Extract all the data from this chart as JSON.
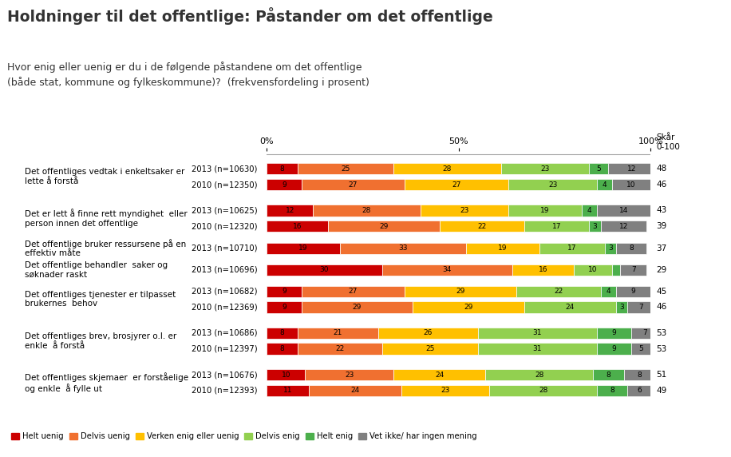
{
  "title": "Holdninger til det offentlige: Påstander om det offentlige",
  "subtitle": "Hvor enig eller uenig er du i de følgende påstandene om det offentlige\n(både stat, kommune og fylkeskommune)?  (frekvensfordeling i prosent)",
  "score_label": "Skår\n0-100",
  "categories": [
    [
      "Det offentliges vedtak i enkeltsaker er\nlette å forstå",
      "2013 (n=10630)",
      "2010 (n=12350)"
    ],
    [
      "Det er lett å finne rett myndighet  eller\nperson innen det offentlige",
      "2013 (n=10625)",
      "2010 (n=12320)"
    ],
    [
      "Det offentlige bruker ressursene på en\neffektiv måte",
      "2013 (n=10710)",
      null
    ],
    [
      "Det offentlige behandler  saker og\nsøknader raskt",
      "2013 (n=10696)",
      null
    ],
    [
      "Det offentliges tjenester er tilpasset\nbrukernes  behov",
      "2013 (n=10682)",
      "2010 (n=12369)"
    ],
    [
      "Det offentliges brev, brosjyrer o.l. er\nenkle  å forstå",
      "2013 (n=10686)",
      "2010 (n=12397)"
    ],
    [
      "Det offentliges skjemaer  er forståelige\nog enkle  å fylle ut",
      "2013 (n=10676)",
      "2010 (n=12393)"
    ]
  ],
  "data": [
    {
      "label": "2013 (n=10630)",
      "values": [
        8,
        25,
        28,
        23,
        5,
        12
      ],
      "score": 48
    },
    {
      "label": "2010 (n=12350)",
      "values": [
        9,
        27,
        27,
        23,
        4,
        10
      ],
      "score": 46
    },
    {
      "label": "2013 (n=10625)",
      "values": [
        12,
        28,
        23,
        19,
        4,
        14
      ],
      "score": 43
    },
    {
      "label": "2010 (n=12320)",
      "values": [
        16,
        29,
        22,
        17,
        3,
        12
      ],
      "score": 39
    },
    {
      "label": "2013 (n=10710)",
      "values": [
        19,
        33,
        19,
        17,
        3,
        8
      ],
      "score": 37
    },
    {
      "label": "2013 (n=10696)",
      "values": [
        30,
        34,
        16,
        10,
        2,
        7
      ],
      "score": 29
    },
    {
      "label": "2013 (n=10682)",
      "values": [
        9,
        27,
        29,
        22,
        4,
        9
      ],
      "score": 45
    },
    {
      "label": "2010 (n=12369)",
      "values": [
        9,
        29,
        29,
        24,
        3,
        7
      ],
      "score": 46
    },
    {
      "label": "2013 (n=10686)",
      "values": [
        8,
        21,
        26,
        31,
        9,
        7
      ],
      "score": 53
    },
    {
      "label": "2010 (n=12397)",
      "values": [
        8,
        22,
        25,
        31,
        9,
        5
      ],
      "score": 53
    },
    {
      "label": "2013 (n=10676)",
      "values": [
        10,
        23,
        24,
        28,
        8,
        8
      ],
      "score": 51
    },
    {
      "label": "2010 (n=12393)",
      "values": [
        11,
        24,
        23,
        28,
        8,
        6
      ],
      "score": 49
    }
  ],
  "bar_colors": [
    "#cc0000",
    "#f07030",
    "#ffc000",
    "#92d050",
    "#4caf4c",
    "#808080"
  ],
  "legend_labels": [
    "Helt uenig",
    "Delvis uenig",
    "Verken enig eller uenig",
    "Delvis enig",
    "Helt enig",
    "Vet ikke/ har ingen mening"
  ],
  "groups": [
    {
      "rows": [
        0,
        1
      ],
      "label_idx": 0
    },
    {
      "rows": [
        2,
        3
      ],
      "label_idx": 1
    },
    {
      "rows": [
        4
      ],
      "label_idx": 2
    },
    {
      "rows": [
        5
      ],
      "label_idx": 3
    },
    {
      "rows": [
        6,
        7
      ],
      "label_idx": 4
    },
    {
      "rows": [
        8,
        9
      ],
      "label_idx": 5
    },
    {
      "rows": [
        10,
        11
      ],
      "label_idx": 6
    }
  ],
  "bar_height": 0.32,
  "background_color": "#ffffff",
  "title_color": "#333333",
  "subtitle_color": "#333333"
}
